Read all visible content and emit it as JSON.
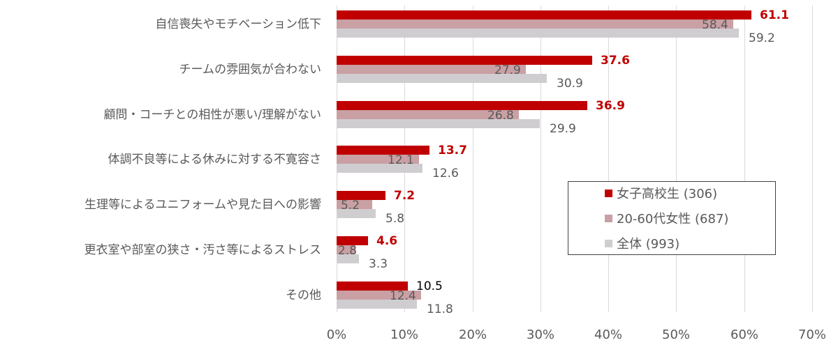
{
  "chart_data": {
    "type": "bar",
    "orientation": "horizontal",
    "title": "",
    "xlabel": "",
    "ylabel": "",
    "xlim": [
      0,
      70
    ],
    "x_ticks": [
      "0%",
      "10%",
      "20%",
      "30%",
      "40%",
      "50%",
      "60%",
      "70%"
    ],
    "grid": true,
    "legend_position": "inside-right",
    "categories": [
      "自信喪失やモチベーション低下",
      "チームの雰囲気が合わない",
      "顧問・コーチとの相性が悪い/理解がない",
      "体調不良等による休みに対する不寛容さ",
      "生理等によるユニフォームや見た目への影響",
      "更衣室や部室の狭さ・汚さ等によるストレス",
      "その他"
    ],
    "series": [
      {
        "name": "女子高校生 (306)",
        "color": "#c00000",
        "label_color": "#c00000",
        "bold": true,
        "values": [
          61.1,
          37.6,
          36.9,
          13.7,
          7.2,
          4.6,
          10.5
        ],
        "labels": [
          "61.1",
          "37.6",
          "36.9",
          "13.7",
          "7.2",
          "4.6",
          "10.5"
        ]
      },
      {
        "name": "20-60代女性 (687)",
        "color": "#c9a0a4",
        "label_color": "#595959",
        "bold": false,
        "values": [
          58.4,
          27.9,
          26.8,
          12.1,
          5.2,
          2.8,
          12.4
        ],
        "labels": [
          "58.4",
          "27.9",
          "26.8",
          "12.1",
          "5.2",
          "2.8",
          "12.4"
        ]
      },
      {
        "name": "全体 (993)",
        "color": "#d0cdd1",
        "label_color": "#595959",
        "bold": false,
        "values": [
          59.2,
          30.9,
          29.9,
          12.6,
          5.8,
          3.3,
          11.8
        ],
        "labels": [
          "59.2",
          "30.9",
          "29.9",
          "12.6",
          "5.8",
          "3.3",
          "11.8"
        ]
      }
    ],
    "label_overrides": {
      "0_6_color": "#000000",
      "0_6_bold": false
    }
  }
}
